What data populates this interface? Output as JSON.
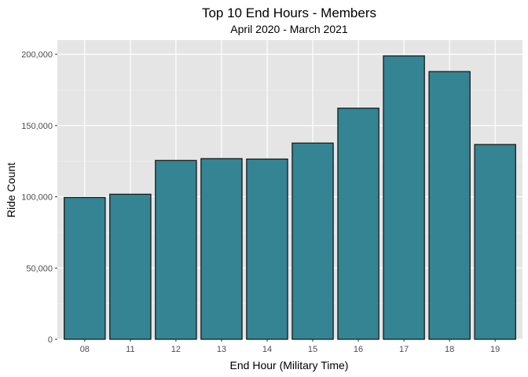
{
  "chart_data": {
    "type": "bar",
    "title": "Top 10 End Hours - Members",
    "subtitle": "April 2020 - March 2021",
    "xlabel": "End Hour (Military Time)",
    "ylabel": "Ride Count",
    "categories": [
      "08",
      "11",
      "12",
      "13",
      "14",
      "15",
      "16",
      "17",
      "18",
      "19"
    ],
    "values": [
      99500,
      101800,
      125500,
      126800,
      126500,
      137700,
      162200,
      198900,
      187900,
      136700
    ],
    "ylim": [
      0,
      210000
    ],
    "yticks": [
      0,
      50000,
      100000,
      150000,
      200000
    ],
    "ytick_labels": [
      "0",
      "50,000",
      "100,000",
      "150,000",
      "200,000"
    ],
    "grid": true,
    "colors": {
      "bar_fill": "#348493",
      "bar_stroke": "#111111",
      "panel": "#e5e5e5",
      "grid_major": "#ffffff",
      "grid_minor": "#f0f0f0"
    }
  }
}
